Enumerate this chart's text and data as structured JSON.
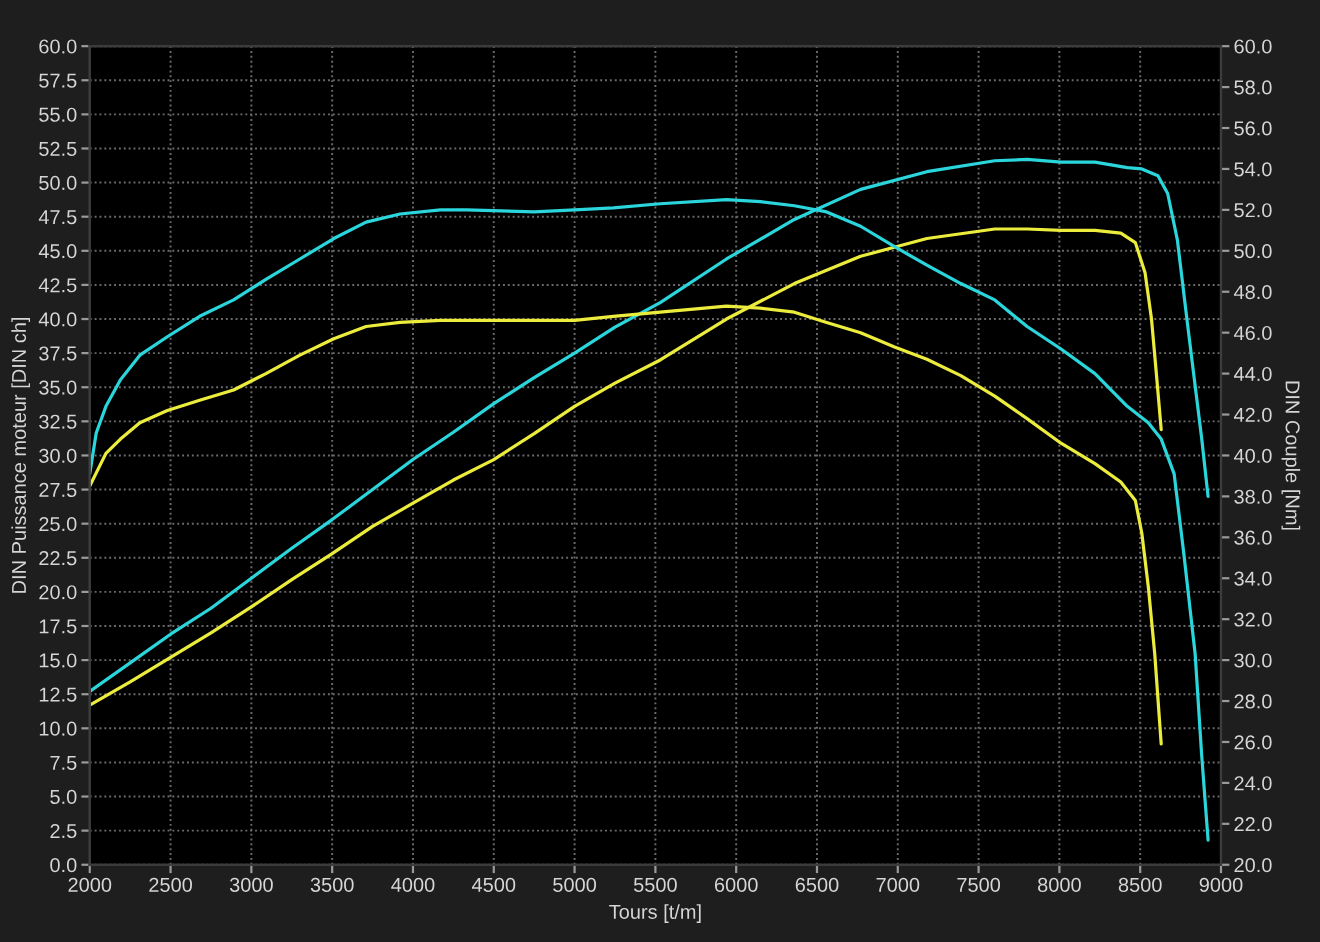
{
  "chart_data": {
    "type": "line",
    "xlabel": "Tours [t/m]",
    "ylabel": "DIN Puissance moteur [DIN ch]",
    "y2label": "DIN Couple [Nm]",
    "xlim": [
      2000,
      9000
    ],
    "xticks": [
      2000,
      2500,
      3000,
      3500,
      4000,
      4500,
      5000,
      5500,
      6000,
      6500,
      7000,
      7500,
      8000,
      8500,
      9000
    ],
    "ylim": [
      0,
      60
    ],
    "yticks": [
      {
        "value": 0,
        "label": "0.0"
      },
      {
        "value": 2.5,
        "label": "2.5"
      },
      {
        "value": 5,
        "label": "5.0"
      },
      {
        "value": 7.5,
        "label": "7.5"
      },
      {
        "value": 10,
        "label": "10.0"
      },
      {
        "value": 12.5,
        "label": "12.5"
      },
      {
        "value": 15,
        "label": "15.0"
      },
      {
        "value": 17.5,
        "label": "17.5"
      },
      {
        "value": 20,
        "label": "20.0"
      },
      {
        "value": 22.5,
        "label": "22.5"
      },
      {
        "value": 25,
        "label": "25.0"
      },
      {
        "value": 27.5,
        "label": "27.5"
      },
      {
        "value": 30,
        "label": "30.0"
      },
      {
        "value": 32.5,
        "label": "32.5"
      },
      {
        "value": 35,
        "label": "35.0"
      },
      {
        "value": 37.5,
        "label": "37.5"
      },
      {
        "value": 40,
        "label": "40.0"
      },
      {
        "value": 42.5,
        "label": "42.5"
      },
      {
        "value": 45,
        "label": "45.0"
      },
      {
        "value": 47.5,
        "label": "47.5"
      },
      {
        "value": 50,
        "label": "50.0"
      },
      {
        "value": 52.5,
        "label": "52.5"
      },
      {
        "value": 55,
        "label": "55.0"
      },
      {
        "value": 57.5,
        "label": "57.5"
      },
      {
        "value": 60,
        "label": "60.0"
      }
    ],
    "y2lim": [
      20,
      60
    ],
    "y2ticks": [
      {
        "value": 20,
        "label": "20.0"
      },
      {
        "value": 22,
        "label": "22.0"
      },
      {
        "value": 24,
        "label": "24.0"
      },
      {
        "value": 26,
        "label": "26.0"
      },
      {
        "value": 28,
        "label": "28.0"
      },
      {
        "value": 30,
        "label": "30.0"
      },
      {
        "value": 32,
        "label": "32.0"
      },
      {
        "value": 34,
        "label": "34.0"
      },
      {
        "value": 36,
        "label": "36.0"
      },
      {
        "value": 38,
        "label": "38.0"
      },
      {
        "value": 40,
        "label": "40.0"
      },
      {
        "value": 42,
        "label": "42.0"
      },
      {
        "value": 44,
        "label": "44.0"
      },
      {
        "value": 46,
        "label": "46.0"
      },
      {
        "value": 48,
        "label": "48.0"
      },
      {
        "value": 50,
        "label": "50.0"
      },
      {
        "value": 52,
        "label": "52.0"
      },
      {
        "value": 54,
        "label": "54.0"
      },
      {
        "value": 56,
        "label": "56.0"
      },
      {
        "value": 58,
        "label": "58.0"
      },
      {
        "value": 60,
        "label": "60.0"
      }
    ],
    "grid": true,
    "series": [
      {
        "color": "#2ad6dc",
        "x": [
          2000,
          2250,
          2500,
          2750,
          3000,
          3250,
          3500,
          3750,
          4000,
          4250,
          4500,
          4750,
          5000,
          5250,
          5530,
          5940,
          6360,
          6770,
          7180,
          7600,
          7800,
          8010,
          8220,
          8420,
          8510,
          8610,
          8670,
          8730,
          8790,
          8840,
          8880,
          8920
        ],
        "values": [
          12.7,
          14.8,
          16.9,
          18.8,
          21.0,
          23.2,
          25.3,
          27.5,
          29.7,
          31.7,
          33.8,
          35.7,
          37.5,
          39.4,
          41.2,
          44.4,
          47.3,
          49.5,
          50.8,
          51.6,
          51.7,
          51.5,
          51.5,
          51.1,
          51.0,
          50.5,
          49.2,
          45.8,
          39.9,
          35.1,
          31.3,
          27.0
        ]
      },
      {
        "color": "#ecec3c",
        "x": [
          2000,
          2250,
          2500,
          2750,
          3000,
          3250,
          3500,
          3750,
          4000,
          4250,
          4500,
          4750,
          5000,
          5250,
          5530,
          5940,
          6360,
          6770,
          7180,
          7600,
          7800,
          8010,
          8220,
          8380,
          8470,
          8530,
          8570,
          8600,
          8630
        ],
        "values": [
          11.7,
          13.4,
          15.2,
          17.0,
          18.9,
          20.9,
          22.8,
          24.8,
          26.5,
          28.2,
          29.7,
          31.6,
          33.6,
          35.3,
          37.0,
          40.0,
          42.6,
          44.6,
          45.9,
          46.6,
          46.6,
          46.5,
          46.5,
          46.3,
          45.6,
          43.4,
          40.0,
          36.0,
          31.9
        ]
      },
      {
        "color": "#2ad6dc",
        "axis": "y2",
        "x": [
          2000,
          2040,
          2100,
          2190,
          2310,
          2480,
          2680,
          2890,
          3090,
          3300,
          3510,
          3710,
          3920,
          4170,
          4330,
          4750,
          5000,
          5240,
          5530,
          5940,
          6150,
          6360,
          6560,
          6770,
          6980,
          7180,
          7390,
          7600,
          7800,
          8010,
          8220,
          8420,
          8550,
          8630,
          8710,
          8770,
          8840,
          8880,
          8920
        ],
        "values": [
          39.1,
          41.1,
          42.4,
          43.7,
          44.9,
          45.8,
          46.8,
          47.6,
          48.6,
          49.6,
          50.6,
          51.4,
          51.8,
          52.0,
          52.0,
          51.9,
          52.0,
          52.1,
          52.3,
          52.5,
          52.4,
          52.2,
          51.9,
          51.2,
          50.2,
          49.3,
          48.4,
          47.6,
          46.3,
          45.2,
          44.0,
          42.4,
          41.6,
          40.8,
          39.1,
          35.2,
          30.3,
          25.4,
          21.2
        ]
      },
      {
        "color": "#ecec3c",
        "axis": "y2",
        "x": [
          2000,
          2100,
          2190,
          2310,
          2480,
          2680,
          2890,
          3090,
          3300,
          3510,
          3710,
          3920,
          4170,
          4330,
          4750,
          5000,
          5240,
          5530,
          5940,
          6150,
          6360,
          6560,
          6770,
          6980,
          7180,
          7390,
          7600,
          7800,
          8010,
          8220,
          8380,
          8470,
          8510,
          8550,
          8590,
          8630
        ],
        "values": [
          38.5,
          40.1,
          40.8,
          41.6,
          42.2,
          42.7,
          43.2,
          44.0,
          44.9,
          45.7,
          46.3,
          46.5,
          46.6,
          46.6,
          46.6,
          46.6,
          46.8,
          47.0,
          47.3,
          47.2,
          47.0,
          46.5,
          46.0,
          45.3,
          44.7,
          43.9,
          42.9,
          41.8,
          40.6,
          39.6,
          38.7,
          37.8,
          36.2,
          33.6,
          30.3,
          25.9
        ]
      }
    ]
  }
}
